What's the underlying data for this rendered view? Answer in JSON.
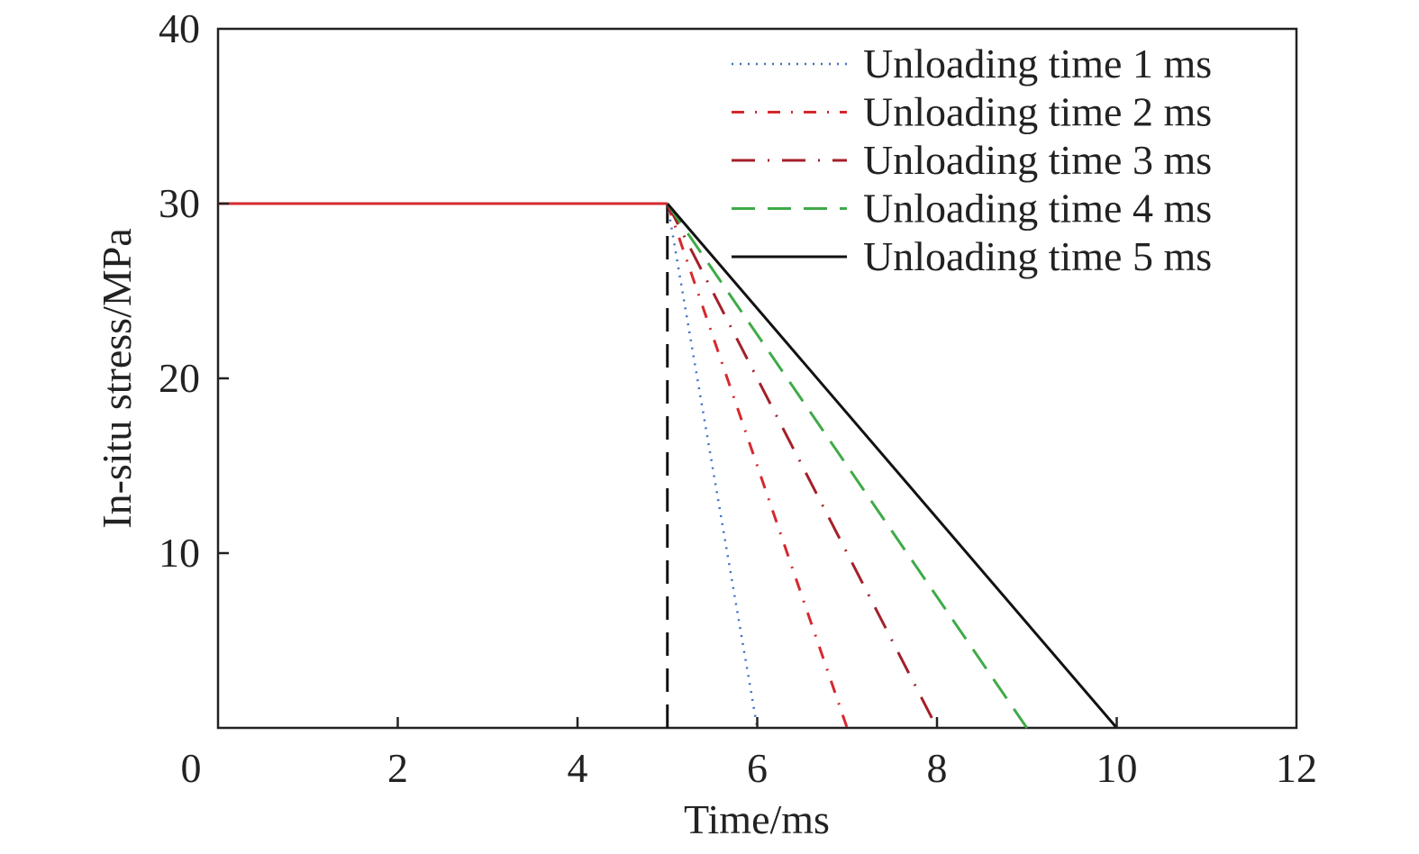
{
  "chart_data": {
    "type": "line",
    "title": "",
    "xlabel": "Time/ms",
    "ylabel": "In-situ stress/MPa",
    "xlim": [
      0,
      12
    ],
    "ylim": [
      0,
      40
    ],
    "xticks": [
      0,
      2,
      4,
      6,
      8,
      10,
      12
    ],
    "yticks": [
      10,
      20,
      30,
      40
    ],
    "grid": false,
    "legend_position": "top-right",
    "series": [
      {
        "name": "Unloading time 1 ms",
        "color": "#3b6fc4",
        "style": "dotted",
        "points": [
          [
            0,
            30
          ],
          [
            5,
            30
          ],
          [
            6,
            0
          ]
        ]
      },
      {
        "name": "Unloading time 2 ms",
        "color": "#d6282e",
        "style": "dashdot",
        "points": [
          [
            0,
            30
          ],
          [
            5,
            30
          ],
          [
            7,
            0
          ]
        ]
      },
      {
        "name": "Unloading time 3 ms",
        "color": "#a3202a",
        "style": "longdashdot",
        "points": [
          [
            0,
            30
          ],
          [
            5,
            30
          ],
          [
            8,
            0
          ]
        ]
      },
      {
        "name": "Unloading time 4 ms",
        "color": "#3faa48",
        "style": "dashed",
        "points": [
          [
            0,
            30
          ],
          [
            5,
            30
          ],
          [
            9,
            0
          ]
        ]
      },
      {
        "name": "Unloading time 5 ms",
        "color": "#111111",
        "style": "solid",
        "points": [
          [
            0,
            30
          ],
          [
            5,
            30
          ],
          [
            10,
            0
          ]
        ]
      }
    ],
    "reference_lines": [
      {
        "color": "#111111",
        "style": "dashed",
        "points": [
          [
            5,
            0
          ],
          [
            5,
            30
          ]
        ]
      }
    ],
    "initial_segment": {
      "color": "#d6282e",
      "points": [
        [
          0,
          30
        ],
        [
          5,
          30
        ]
      ]
    }
  }
}
